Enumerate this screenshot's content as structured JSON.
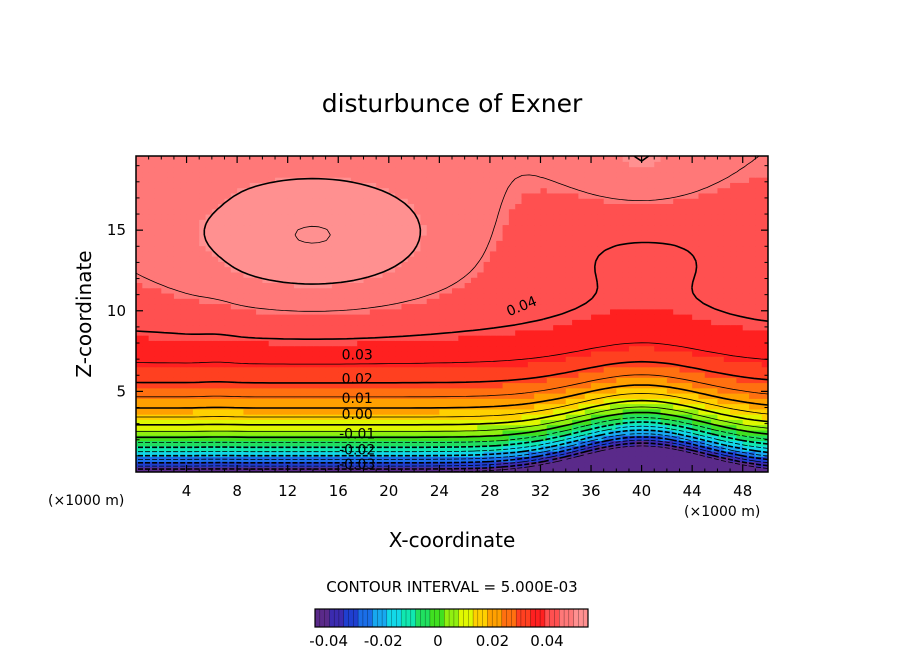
{
  "chart_data": {
    "type": "heatmap",
    "subtype": "filled-contour",
    "title": "disturbunce of Exner",
    "xlabel": "X-coordinate",
    "ylabel": "Z-coordinate",
    "x_unit": "(×1000 m)",
    "z_unit": "(×1000 m)",
    "xlim": [
      0,
      50
    ],
    "ylim": [
      0,
      19.6
    ],
    "xticks": [
      4,
      8,
      12,
      16,
      20,
      24,
      28,
      32,
      36,
      40,
      44,
      48
    ],
    "yticks": [
      5,
      10,
      15
    ],
    "contour_interval_text": "CONTOUR INTERVAL = 5.000E-03",
    "contour_interval": 0.005,
    "value_range": [
      -0.045,
      0.055
    ],
    "contour_labels": [
      {
        "text": "0.04",
        "value": 0.04,
        "x": 30.5,
        "z": 10.3
      },
      {
        "text": "0.03",
        "value": 0.03,
        "x": 17.5,
        "z": 7.3
      },
      {
        "text": "0.02",
        "value": 0.02,
        "x": 17.5,
        "z": 5.8
      },
      {
        "text": "0.01",
        "value": 0.01,
        "x": 17.5,
        "z": 4.6
      },
      {
        "text": "0.00",
        "value": 0.0,
        "x": 17.5,
        "z": 3.6
      },
      {
        "text": "-0.01",
        "value": -0.01,
        "x": 17.5,
        "z": 2.4
      },
      {
        "text": "-0.02",
        "value": -0.02,
        "x": 17.5,
        "z": 1.4
      },
      {
        "text": "-0.03",
        "value": -0.03,
        "x": 17.5,
        "z": 0.5
      }
    ],
    "colorbar": {
      "tick_values": [
        -0.04,
        -0.02,
        0,
        0.02,
        0.04
      ],
      "tick_labels": [
        "-0.04",
        "-0.02",
        "0",
        "0.02",
        "0.04"
      ],
      "colors": [
        "#5a2a8a",
        "#3b2bb0",
        "#1f3fd0",
        "#1a6ee8",
        "#17a8f0",
        "#12d8e8",
        "#10e8b0",
        "#20e060",
        "#40e020",
        "#90f010",
        "#e0f800",
        "#ffd000",
        "#ffa000",
        "#ff7010",
        "#ff4020",
        "#ff2020",
        "#ff5050",
        "#ff7878",
        "#ff9090"
      ]
    }
  }
}
